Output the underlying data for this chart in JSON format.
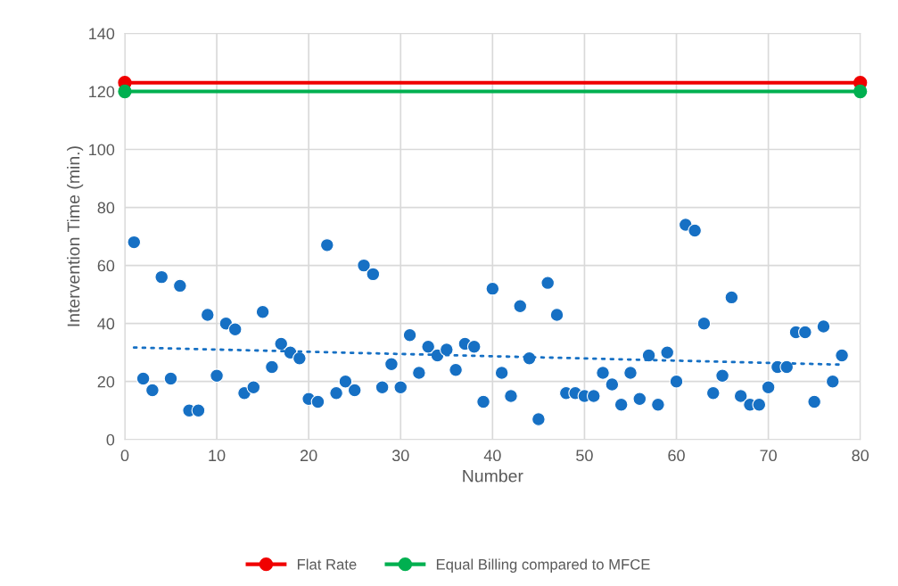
{
  "chart_data": {
    "type": "scatter",
    "xlabel": "Number",
    "ylabel": "Intervention Time (min.)",
    "xlim": [
      0,
      80
    ],
    "ylim": [
      0,
      140
    ],
    "xticks": [
      0,
      10,
      20,
      30,
      40,
      50,
      60,
      70,
      80
    ],
    "yticks": [
      0,
      20,
      40,
      60,
      80,
      100,
      120,
      140
    ],
    "grid": true,
    "legend": "bottom",
    "marker": "circle",
    "series": [
      {
        "color": "#1670c4",
        "x": [
          1,
          2,
          3,
          4,
          5,
          6,
          7,
          8,
          9,
          10,
          11,
          12,
          13,
          14,
          15,
          16,
          17,
          18,
          19,
          20,
          21,
          22,
          23,
          24,
          25,
          26,
          27,
          28,
          29,
          30,
          31,
          32,
          33,
          34,
          35,
          36,
          37,
          38,
          39,
          40,
          41,
          42,
          43,
          44,
          45,
          46,
          47,
          48,
          49,
          50,
          51,
          52,
          53,
          54,
          55,
          56,
          57,
          58,
          59,
          60,
          61,
          62,
          63,
          64,
          65,
          66,
          67,
          68,
          69,
          70,
          71,
          72,
          73,
          74,
          75,
          76,
          77,
          78
        ],
        "values": [
          68,
          21,
          17,
          56,
          21,
          53,
          10,
          10,
          43,
          22,
          40,
          38,
          16,
          18,
          44,
          25,
          33,
          30,
          28,
          14,
          13,
          67,
          16,
          20,
          17,
          60,
          57,
          18,
          26,
          18,
          36,
          23,
          32,
          29,
          31,
          24,
          33,
          32,
          13,
          52,
          23,
          15,
          46,
          28,
          7,
          54,
          43,
          16,
          16,
          15,
          15,
          23,
          19,
          12,
          23,
          14,
          29,
          12,
          30,
          20,
          74,
          72,
          40,
          16,
          22,
          49,
          15,
          12,
          12,
          18,
          25,
          25,
          37,
          37,
          13,
          39,
          20,
          29
        ]
      },
      {
        "type": "line",
        "color": "#1670c4",
        "line_style": "dotted",
        "marker": "none",
        "x": [
          1,
          78
        ],
        "values": [
          31.7,
          25.8
        ]
      },
      {
        "type": "line",
        "name": "Flat Rate",
        "color": "#f00000",
        "line_style": "solid",
        "x": [
          0,
          80
        ],
        "values": [
          123,
          123
        ]
      },
      {
        "type": "line",
        "name": "Equal Billing compared to MFCE",
        "color": "#00b050",
        "line_style": "solid",
        "x": [
          0,
          80
        ],
        "values": [
          120,
          120
        ]
      }
    ]
  }
}
